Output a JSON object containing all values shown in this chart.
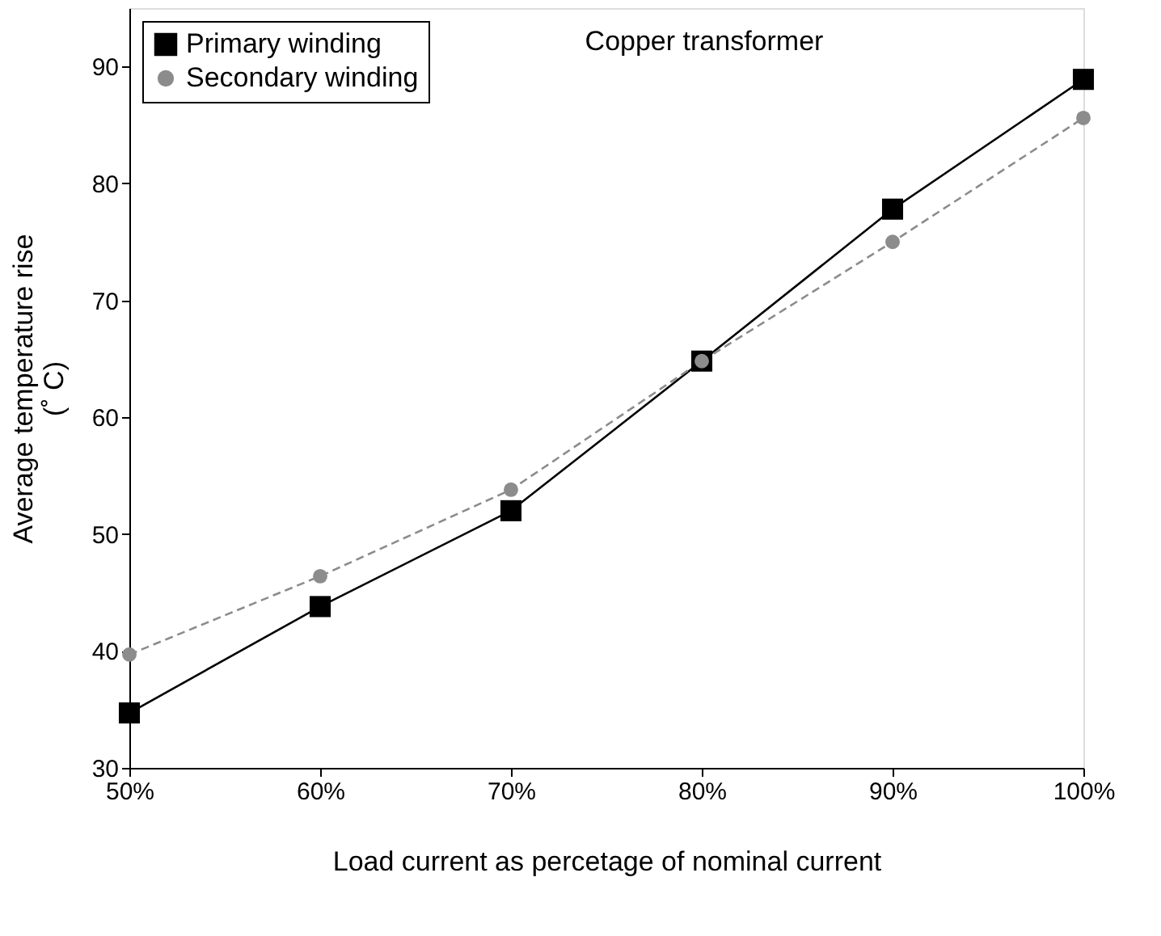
{
  "chart_data": {
    "type": "line",
    "title": "Copper transformer",
    "xlabel": "Load current as percetage of nominal current",
    "ylabel": "Average temperature rise\n(˚ C)",
    "x": [
      50,
      60,
      70,
      80,
      90,
      100
    ],
    "series": [
      {
        "name": "Primary winding",
        "color": "#000000",
        "marker": "square",
        "line_style": "solid",
        "values": [
          34.7,
          43.8,
          52.0,
          64.8,
          77.8,
          88.9
        ]
      },
      {
        "name": "Secondary winding",
        "color": "#8c8c8c",
        "marker": "circle",
        "line_style": "dashed",
        "values": [
          39.7,
          46.4,
          53.8,
          64.8,
          75.0,
          85.6
        ]
      }
    ],
    "xlim": [
      50,
      100
    ],
    "xticks": [
      {
        "value": 50,
        "label": "50%"
      },
      {
        "value": 60,
        "label": "60%"
      },
      {
        "value": 70,
        "label": "70%"
      },
      {
        "value": 80,
        "label": "80%"
      },
      {
        "value": 90,
        "label": "90%"
      },
      {
        "value": 100,
        "label": "100%"
      }
    ],
    "ylim": [
      30,
      95
    ],
    "yticks": [
      30,
      40,
      50,
      60,
      70,
      80,
      90
    ],
    "grid": false,
    "legend": "top left"
  }
}
